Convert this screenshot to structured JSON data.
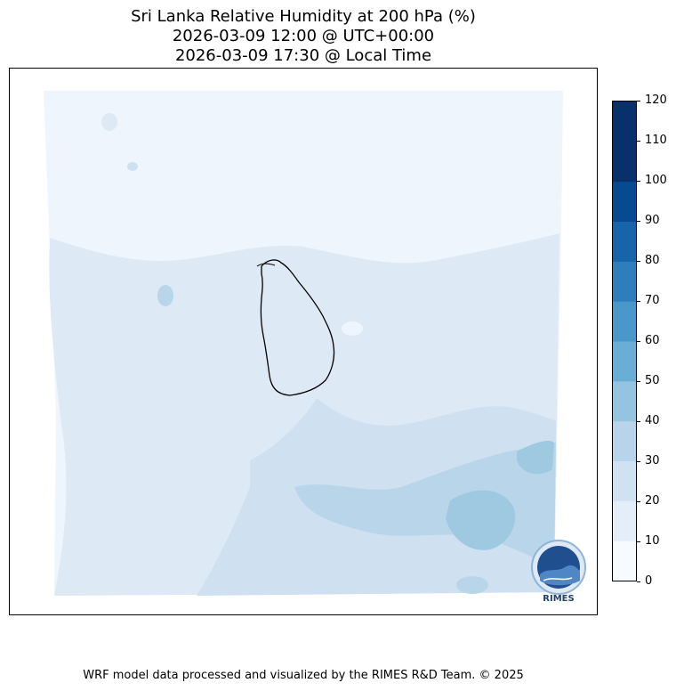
{
  "title": {
    "line1": "Sri Lanka Relative Humidity at 200 hPa (%)",
    "line2": "2026-03-09 12:00 @ UTC+00:00",
    "line3": "2026-03-09 17:30 @ Local Time"
  },
  "colorbar": {
    "ticks": [
      "0",
      "10",
      "20",
      "30",
      "40",
      "50",
      "60",
      "70",
      "80",
      "90",
      "100",
      "110",
      "120"
    ],
    "colors": [
      "#f7fbff",
      "#e3eef9",
      "#d0e1f2",
      "#b7d4ea",
      "#94c4df",
      "#6aaed6",
      "#4a98c9",
      "#2e7ebc",
      "#1764ab",
      "#084a91",
      "#08306b",
      "#08306b"
    ]
  },
  "map": {
    "field_colors": {
      "lightest": "#eef5fc",
      "light": "#dde9f5",
      "medium": "#cfe0f1",
      "darker": "#b9d5ea",
      "darkest": "#9fc8e1"
    },
    "coastline_color": "#000000",
    "logo": {
      "text": "RIMES",
      "ring_text": "Regional Integrated Multi-Hazard Early Warning System"
    }
  },
  "footer": "WRF model data processed and visualized by the RIMES R&D Team. © 2025"
}
